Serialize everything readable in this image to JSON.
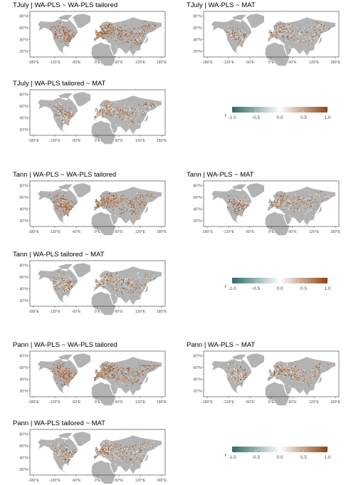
{
  "chart_data": [
    {
      "type": "heatmap",
      "title": "TJuly | WA-PLS ~ WA-PLS tailored",
      "density": 1.0,
      "warm": 0.88,
      "grey": 0.05
    },
    {
      "type": "heatmap",
      "title": "TJuly | WA-PLS ~ MAT",
      "density": 0.75,
      "warm": 0.35,
      "grey": 0.45
    },
    {
      "type": "heatmap",
      "title": "TJuly | WA-PLS tailored ~ MAT",
      "density": 0.75,
      "warm": 0.35,
      "grey": 0.45
    },
    {
      "type": "heatmap",
      "title": "Tann | WA-PLS ~ WA-PLS tailored",
      "density": 1.0,
      "warm": 0.88,
      "grey": 0.05
    },
    {
      "type": "heatmap",
      "title": "Tann | WA-PLS ~ MAT",
      "density": 0.75,
      "warm": 0.35,
      "grey": 0.45
    },
    {
      "type": "heatmap",
      "title": "Tann | WA-PLS tailored ~ MAT",
      "density": 0.75,
      "warm": 0.35,
      "grey": 0.45
    },
    {
      "type": "heatmap",
      "title": "Pann | WA-PLS ~ WA-PLS tailored",
      "density": 1.0,
      "warm": 0.88,
      "grey": 0.05
    },
    {
      "type": "heatmap",
      "title": "Pann | WA-PLS ~ MAT",
      "density": 0.75,
      "warm": 0.35,
      "grey": 0.45
    },
    {
      "type": "heatmap",
      "title": "Pann | WA-PLS tailored ~ MAT",
      "density": 0.75,
      "warm": 0.35,
      "grey": 0.45
    }
  ],
  "axes": {
    "x_ticks": [
      "-180°E",
      "-120°E",
      "-60°E",
      "0°E",
      "60°E",
      "120°E",
      "180°E"
    ],
    "x_values": [
      -180,
      -120,
      -60,
      0,
      60,
      120,
      180
    ],
    "y_ticks": [
      "80°N",
      "60°N",
      "40°N",
      "20°N"
    ],
    "y_values": [
      80,
      60,
      40,
      20
    ],
    "xlim": [
      -190,
      190
    ],
    "ylim": [
      10,
      88
    ]
  },
  "legend": {
    "label": "r",
    "ticks": [
      "-1.0",
      "-0.5",
      "0.0",
      "0.5",
      "1.0"
    ],
    "tick_values": [
      -1,
      -0.5,
      0,
      0.5,
      1
    ],
    "range": [
      -1,
      1
    ],
    "colors": [
      "#2d6b63",
      "#ffffff",
      "#8b4513"
    ]
  },
  "colors": {
    "land": "#b3b3b3",
    "panel_border": "#333333",
    "text": "#000000",
    "tick_text": "#4d4d4d"
  }
}
